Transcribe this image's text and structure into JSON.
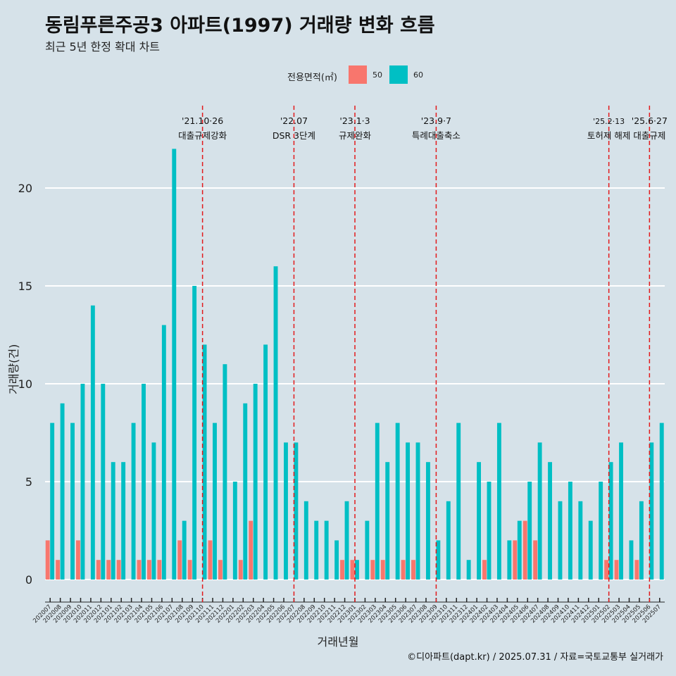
{
  "chart_data": {
    "type": "bar",
    "title": "동림푸른주공3 아파트(1997) 거래량 변화 흐름",
    "subtitle": "최근 5년 한정 확대 차트",
    "xlabel": "거래년월",
    "ylabel": "거래량(건)",
    "caption": "©디아파트(dapt.kr) / 2025.07.31 / 자료=국토교통부 실거래가",
    "legend": {
      "title": "전용면적(㎡)",
      "position": "top"
    },
    "ylim": [
      0,
      23
    ],
    "yticks": [
      0,
      5,
      10,
      15,
      20
    ],
    "grid": true,
    "categories": [
      "202007",
      "202008",
      "202009",
      "202010",
      "202011",
      "202012",
      "202101",
      "202102",
      "202103",
      "202104",
      "202105",
      "202106",
      "202107",
      "202108",
      "202109",
      "202110",
      "202111",
      "202112",
      "202201",
      "202202",
      "202203",
      "202204",
      "202205",
      "202206",
      "202207",
      "202208",
      "202209",
      "202210",
      "202211",
      "202212",
      "202301",
      "202302",
      "202303",
      "202304",
      "202305",
      "202306",
      "202307",
      "202308",
      "202309",
      "202310",
      "202311",
      "202312",
      "202401",
      "202402",
      "202403",
      "202404",
      "202405",
      "202406",
      "202407",
      "202408",
      "202409",
      "202410",
      "202411",
      "202412",
      "202501",
      "202502",
      "202503",
      "202504",
      "202505",
      "202506",
      "202507"
    ],
    "series": [
      {
        "name": "50",
        "color": "#F8766D",
        "values": [
          2,
          1,
          0,
          2,
          0,
          1,
          1,
          1,
          0,
          1,
          1,
          1,
          0,
          2,
          1,
          0,
          2,
          1,
          0,
          1,
          3,
          0,
          0,
          0,
          0,
          0,
          0,
          0,
          0,
          1,
          1,
          0,
          1,
          1,
          0,
          1,
          1,
          0,
          0,
          0,
          0,
          0,
          0,
          1,
          0,
          0,
          2,
          3,
          2,
          0,
          0,
          0,
          0,
          0,
          0,
          1,
          1,
          0,
          1,
          0,
          0
        ]
      },
      {
        "name": "60",
        "color": "#00BFC4",
        "values": [
          8,
          9,
          8,
          10,
          14,
          10,
          6,
          6,
          8,
          10,
          7,
          13,
          22,
          3,
          15,
          12,
          8,
          11,
          5,
          9,
          10,
          12,
          16,
          7,
          7,
          4,
          3,
          3,
          2,
          4,
          1,
          3,
          8,
          6,
          8,
          7,
          7,
          6,
          2,
          4,
          8,
          1,
          6,
          5,
          8,
          2,
          3,
          5,
          7,
          6,
          4,
          5,
          4,
          3,
          5,
          6,
          7,
          2,
          4,
          7,
          8
        ]
      }
    ],
    "annotations": [
      {
        "x": "202110",
        "date": "'21.10·26",
        "label": "대출규제강화"
      },
      {
        "x": "202207",
        "date": "'22.07",
        "label": "DSR 3단계"
      },
      {
        "x": "202301",
        "date": "'23.1·3",
        "label": "규제완화"
      },
      {
        "x": "202309",
        "date": "'23.9·7",
        "label": "특례대출축소"
      },
      {
        "x": "202502",
        "date": "'25.2·13",
        "label": "토허제 해제"
      },
      {
        "x": "202506",
        "date": "'25.6·27",
        "label": "대출규제"
      }
    ]
  },
  "colors": {
    "background": "#d6e2e9",
    "grid": "#ffffff",
    "vline": "#e31a1c"
  }
}
